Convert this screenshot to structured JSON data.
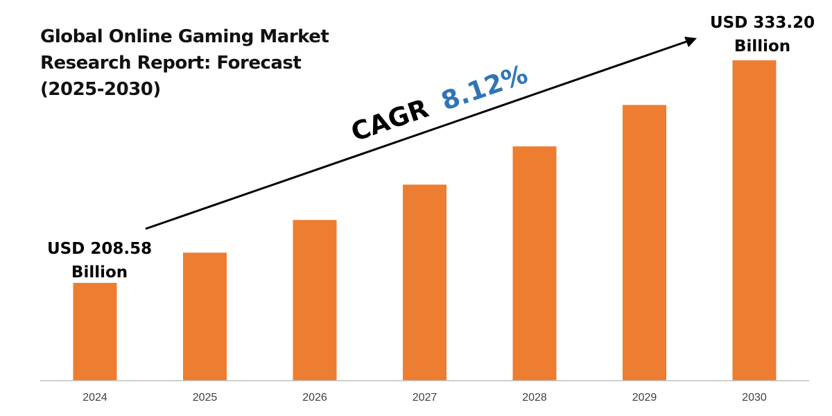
{
  "title_lines": [
    "Global Online Gaming Market",
    "Research Report: Forecast",
    "(2025-2030)"
  ],
  "cagr": {
    "prefix": "CAGR",
    "value": "8.12%"
  },
  "start_label": [
    "USD 208.58",
    "Billion"
  ],
  "end_label": [
    "USD 333.20",
    "Billion"
  ],
  "colors": {
    "bar": "#ED7D31",
    "cagr_value": "#2E75B6",
    "axis": "#bfbfbf",
    "text": "#000000",
    "tick": "#404040"
  },
  "chart_data": {
    "type": "bar",
    "title": "Global Online Gaming Market Research Report: Forecast (2025-2030)",
    "categories": [
      "2024",
      "2025",
      "2026",
      "2027",
      "2028",
      "2029",
      "2030"
    ],
    "series": [
      {
        "values": [
          208.58,
          225.5,
          243.8,
          263.6,
          285.0,
          308.2,
          333.2
        ]
      }
    ],
    "xlabel": "",
    "ylabel": "",
    "y_axis_visible": false,
    "grid": false,
    "legend": "none"
  }
}
